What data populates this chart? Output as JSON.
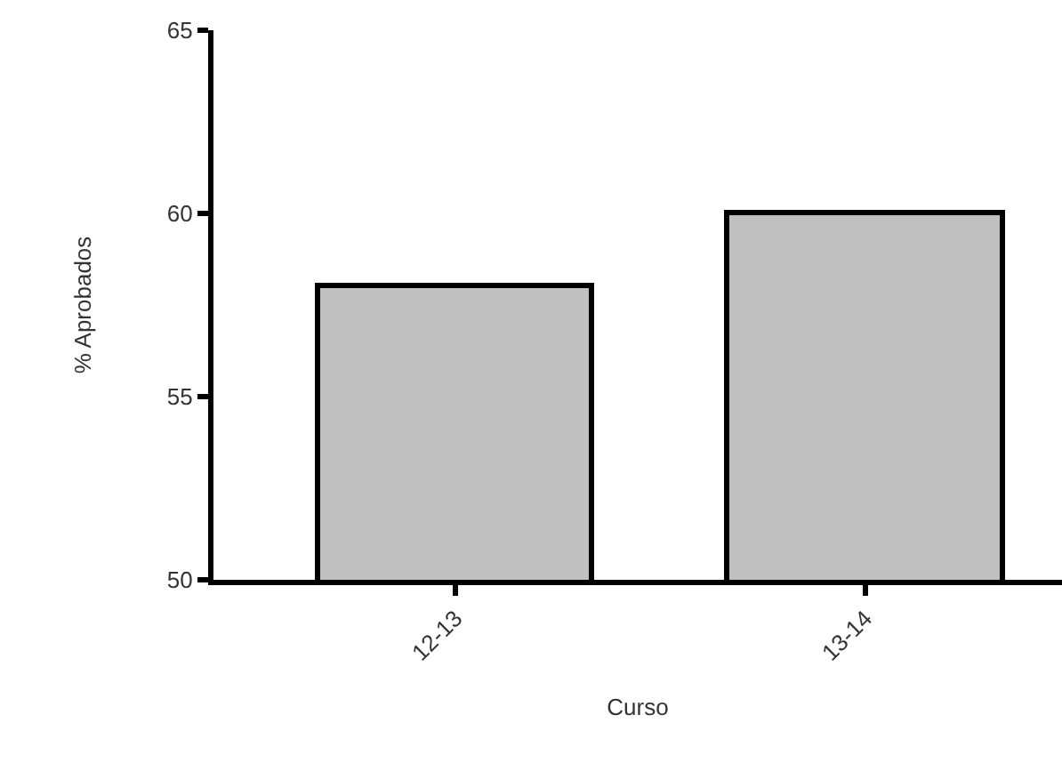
{
  "chart_data": {
    "type": "bar",
    "categories": [
      "12-13",
      "13-14"
    ],
    "values": [
      58,
      60
    ],
    "color": "#c0c0c0",
    "xlabel": "Curso",
    "ylabel": "% Aprobados",
    "ylim": [
      50,
      65
    ],
    "yticks": [
      50,
      55,
      60,
      65
    ]
  }
}
